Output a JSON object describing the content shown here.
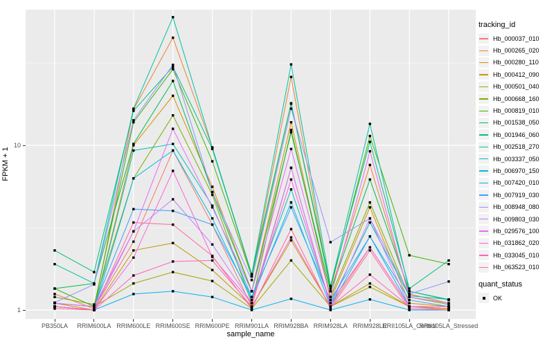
{
  "legend": {
    "tracking_id_title": "tracking_id",
    "quant_status_title": "quant_status",
    "quant_items": [
      {
        "label": "OK",
        "marker": "black-square"
      }
    ]
  },
  "chart_data": {
    "type": "line",
    "title": "",
    "xlabel": "sample_name",
    "ylabel": "FPKM + 1",
    "y_scale": "log10",
    "y_ticks": [
      1,
      10
    ],
    "y_minor_gridlines": [
      3.162,
      31.62
    ],
    "ylim": [
      0.88,
      67
    ],
    "grid": "white major and minor gridlines on gray panel",
    "panel_bg": "#EBEBEB",
    "legend_position": "right",
    "point_marker": "black-square",
    "x": [
      "PB350LA",
      "RRIM600LA",
      "RRIM600LE",
      "RRIM600SE",
      "RRIM600PE",
      "RRIM901LA",
      "RRIM928BA",
      "RRIM928LA",
      "RRIM928LE",
      "RRII105LA_Control",
      "RRII105LA_Stressed"
    ],
    "series": [
      {
        "name": "Hb_000037_010",
        "color": "#F8766D",
        "values": [
          1.25,
          1.02,
          2.6,
          9.3,
          3.3,
          1.05,
          7.3,
          1.05,
          2.4,
          1.05,
          1.02
        ]
      },
      {
        "name": "Hb_000265_020",
        "color": "#EA8331",
        "values": [
          1.05,
          1.0,
          16.5,
          45,
          9.7,
          1.6,
          26,
          1.3,
          7.6,
          1.25,
          1.1
        ]
      },
      {
        "name": "Hb_000280_110",
        "color": "#D89000",
        "values": [
          1.1,
          1.0,
          10.0,
          20,
          5.6,
          1.3,
          13.8,
          1.15,
          4.2,
          1.1,
          1.05
        ]
      },
      {
        "name": "Hb_000412_090",
        "color": "#C09B00",
        "values": [
          1.05,
          1.0,
          2.3,
          2.55,
          1.75,
          1.05,
          2.65,
          1.05,
          1.45,
          1.05,
          1.02
        ]
      },
      {
        "name": "Hb_000501_040",
        "color": "#A3A500",
        "values": [
          1.1,
          1.05,
          1.45,
          1.7,
          1.5,
          1.02,
          2.0,
          1.05,
          1.38,
          1.05,
          1.02
        ]
      },
      {
        "name": "Hb_000668_160",
        "color": "#7CAE00",
        "values": [
          1.2,
          1.08,
          6.3,
          15.2,
          5.0,
          1.1,
          12.4,
          1.2,
          4.5,
          1.2,
          1.08
        ]
      },
      {
        "name": "Hb_000819_010",
        "color": "#39B600",
        "values": [
          1.35,
          1.05,
          13.8,
          29,
          8.0,
          1.6,
          17.9,
          1.35,
          11.4,
          2.15,
          1.9
        ]
      },
      {
        "name": "Hb_001538_050",
        "color": "#00BB4E",
        "values": [
          1.35,
          1.45,
          10.2,
          24.6,
          5.2,
          1.3,
          12.0,
          1.3,
          6.2,
          1.3,
          1.15
        ]
      },
      {
        "name": "Hb_001946_060",
        "color": "#00BF7D",
        "values": [
          2.3,
          1.7,
          16.2,
          30,
          9.5,
          1.65,
          18,
          1.4,
          10.5,
          1.35,
          2.0
        ]
      },
      {
        "name": "Hb_002518_270",
        "color": "#00C1A3",
        "values": [
          1.9,
          1.45,
          16.7,
          60,
          9.7,
          1.65,
          31,
          1.4,
          13.5,
          1.3,
          1.16
        ]
      },
      {
        "name": "Hb_003337_050",
        "color": "#00BFC4",
        "values": [
          1.05,
          1.0,
          9.3,
          10.2,
          4.3,
          1.2,
          5.4,
          1.1,
          3.4,
          1.22,
          1.16
        ]
      },
      {
        "name": "Hb_006970_150",
        "color": "#00BAE0",
        "values": [
          1.05,
          1.0,
          6.3,
          9.3,
          3.6,
          1.15,
          4.5,
          1.05,
          2.8,
          1.05,
          1.05
        ]
      },
      {
        "name": "Hb_007420_010",
        "color": "#00B0F6",
        "values": [
          1.05,
          1.0,
          1.25,
          1.3,
          1.2,
          1.0,
          1.17,
          1.0,
          1.16,
          1.0,
          1.0
        ]
      },
      {
        "name": "Hb_007919_030",
        "color": "#35A2FF",
        "values": [
          1.1,
          1.05,
          4.1,
          4.0,
          3.3,
          1.2,
          4.2,
          1.15,
          2.8,
          1.15,
          1.05
        ]
      },
      {
        "name": "Hb_008948_080",
        "color": "#9590FF",
        "values": [
          1.11,
          1.43,
          14.2,
          30.8,
          5.2,
          1.52,
          16.7,
          2.58,
          3.6,
          1.25,
          1.49
        ]
      },
      {
        "name": "Hb_009803_030",
        "color": "#C77CFF",
        "values": [
          1.05,
          1.0,
          3.0,
          4.7,
          2.5,
          1.1,
          7.3,
          1.05,
          3.6,
          1.05,
          1.05
        ]
      },
      {
        "name": "Hb_029576_100",
        "color": "#E76BF3",
        "values": [
          1.1,
          1.05,
          3.0,
          12.6,
          4.2,
          1.3,
          9.5,
          1.2,
          9.2,
          1.2,
          1.1
        ]
      },
      {
        "name": "Hb_031862_020",
        "color": "#FA62DB",
        "values": [
          1.05,
          1.0,
          2.08,
          7.0,
          2.1,
          1.1,
          6.2,
          1.1,
          2.4,
          1.05,
          1.05
        ]
      },
      {
        "name": "Hb_033045_010",
        "color": "#FF62BC",
        "values": [
          1.05,
          1.0,
          1.62,
          1.97,
          2.0,
          1.05,
          2.76,
          1.05,
          1.64,
          1.05,
          1.0
        ]
      },
      {
        "name": "Hb_063523_010",
        "color": "#FF6A98",
        "values": [
          1.02,
          1.0,
          3.4,
          3.3,
          2.13,
          1.02,
          3.1,
          1.02,
          2.3,
          1.02,
          1.0
        ]
      }
    ]
  }
}
